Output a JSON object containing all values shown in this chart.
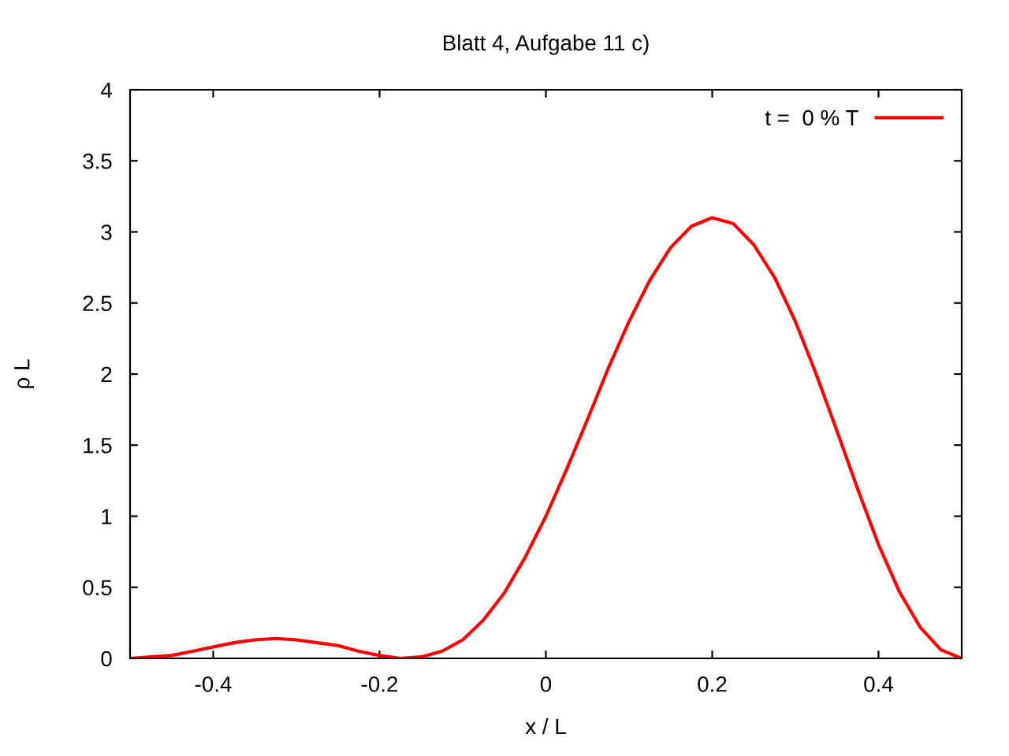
{
  "chart_data": {
    "type": "line",
    "title": "Blatt 4, Aufgabe 11 c)",
    "xlabel": "x / L",
    "ylabel": "ρ L",
    "x": [
      -0.5,
      -0.475,
      -0.45,
      -0.425,
      -0.4,
      -0.375,
      -0.35,
      -0.325,
      -0.3,
      -0.275,
      -0.25,
      -0.225,
      -0.2,
      -0.175,
      -0.15,
      -0.125,
      -0.1,
      -0.075,
      -0.05,
      -0.025,
      0,
      0.025,
      0.05,
      0.075,
      0.1,
      0.125,
      0.15,
      0.175,
      0.2,
      0.225,
      0.25,
      0.275,
      0.3,
      0.325,
      0.35,
      0.375,
      0.4,
      0.425,
      0.45,
      0.475,
      0.5
    ],
    "series": [
      {
        "name": "t =  0 % T",
        "color": "#ff0000",
        "values": [
          0,
          0.01,
          0.02,
          0.05,
          0.08,
          0.11,
          0.13,
          0.14,
          0.13,
          0.11,
          0.09,
          0.05,
          0.02,
          0.0,
          0.01,
          0.05,
          0.13,
          0.27,
          0.46,
          0.71,
          1.0,
          1.33,
          1.68,
          2.04,
          2.37,
          2.66,
          2.89,
          3.04,
          3.1,
          3.06,
          2.91,
          2.68,
          2.37,
          2.0,
          1.6,
          1.19,
          0.8,
          0.47,
          0.22,
          0.06,
          0
        ]
      }
    ],
    "xlim": [
      -0.5,
      0.5
    ],
    "xticks": [
      -0.4,
      -0.2,
      0,
      0.2,
      0.4
    ],
    "ylim": [
      0,
      4
    ],
    "yticks": [
      0,
      0.5,
      1,
      1.5,
      2,
      2.5,
      3,
      3.5,
      4
    ],
    "grid": false,
    "legend": "top right",
    "marker": "none",
    "line_style": "solid"
  }
}
